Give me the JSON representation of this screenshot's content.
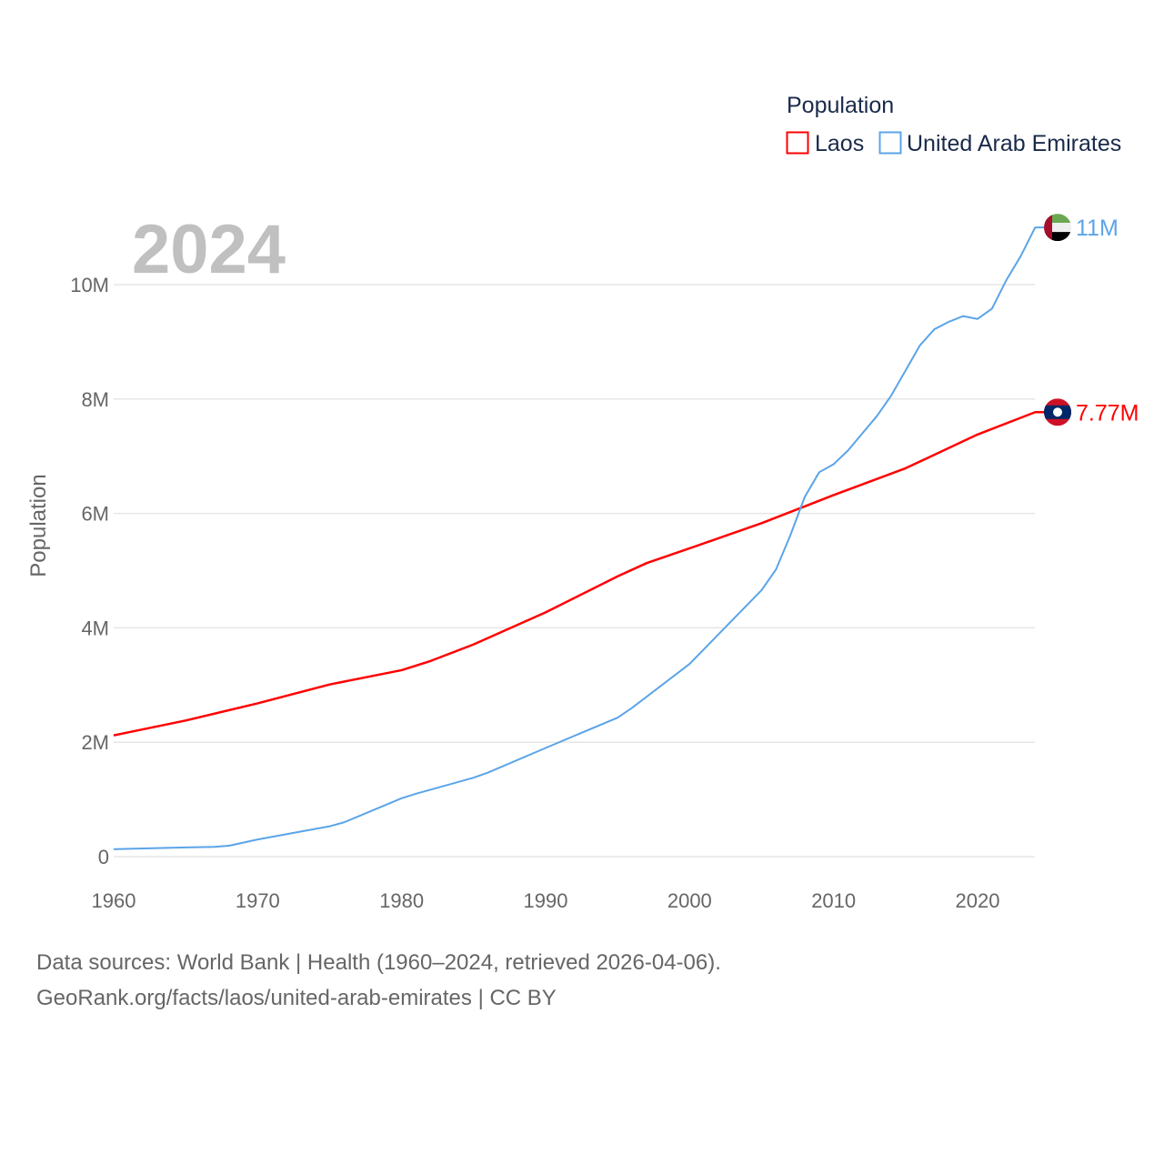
{
  "chart_data": {
    "type": "line",
    "ylabel": "Population",
    "xlabel": "",
    "year_label": "2024",
    "legend": {
      "title": "Population",
      "placement": "top-right"
    },
    "xlim": [
      1960,
      2024
    ],
    "ylim": [
      0,
      11000000
    ],
    "x_ticks": [
      "1960",
      "1970",
      "1980",
      "1990",
      "2000",
      "2010",
      "2020"
    ],
    "x_tick_values": [
      1960,
      1970,
      1980,
      1990,
      2000,
      2010,
      2020
    ],
    "y_ticks": [
      "0",
      "2M",
      "4M",
      "6M",
      "8M",
      "10M"
    ],
    "y_tick_values": [
      0,
      2000000,
      4000000,
      6000000,
      8000000,
      10000000
    ],
    "grid": true,
    "series": [
      {
        "name": "Laos",
        "color": "#ff0000",
        "end_label": "7.77M",
        "flag": "laos-flag",
        "x": [
          1960,
          1965,
          1970,
          1975,
          1980,
          1982,
          1985,
          1990,
          1995,
          1997,
          2000,
          2005,
          2010,
          2015,
          2020,
          2024
        ],
        "y": [
          2.12,
          2.38,
          2.68,
          3.01,
          3.26,
          3.42,
          3.71,
          4.27,
          4.9,
          5.13,
          5.39,
          5.83,
          6.32,
          6.79,
          7.38,
          7.77
        ]
      },
      {
        "name": "United Arab Emirates",
        "color": "#5ba4e8",
        "end_label": "11M",
        "flag": "uae-flag",
        "x": [
          1960,
          1965,
          1967,
          1968,
          1970,
          1975,
          1976,
          1980,
          1981,
          1985,
          1986,
          1990,
          1995,
          1996,
          2000,
          2005,
          2006,
          2007,
          2008,
          2009,
          2010,
          2011,
          2012,
          2013,
          2014,
          2015,
          2016,
          2017,
          2018,
          2019,
          2020,
          2021,
          2022,
          2023,
          2024
        ],
        "y": [
          0.13,
          0.16,
          0.17,
          0.19,
          0.3,
          0.53,
          0.6,
          1.02,
          1.1,
          1.38,
          1.47,
          1.9,
          2.43,
          2.6,
          3.37,
          4.66,
          5.02,
          5.62,
          6.29,
          6.72,
          6.86,
          7.1,
          7.4,
          7.7,
          8.06,
          8.5,
          8.94,
          9.22,
          9.35,
          9.45,
          9.4,
          9.58,
          10.08,
          10.5,
          11.0
        ]
      }
    ]
  },
  "footer": {
    "line1": "Data sources: World Bank | Health (1960–2024, retrieved 2026-04-06).",
    "line2": "GeoRank.org/facts/laos/united-arab-emirates | CC BY"
  }
}
